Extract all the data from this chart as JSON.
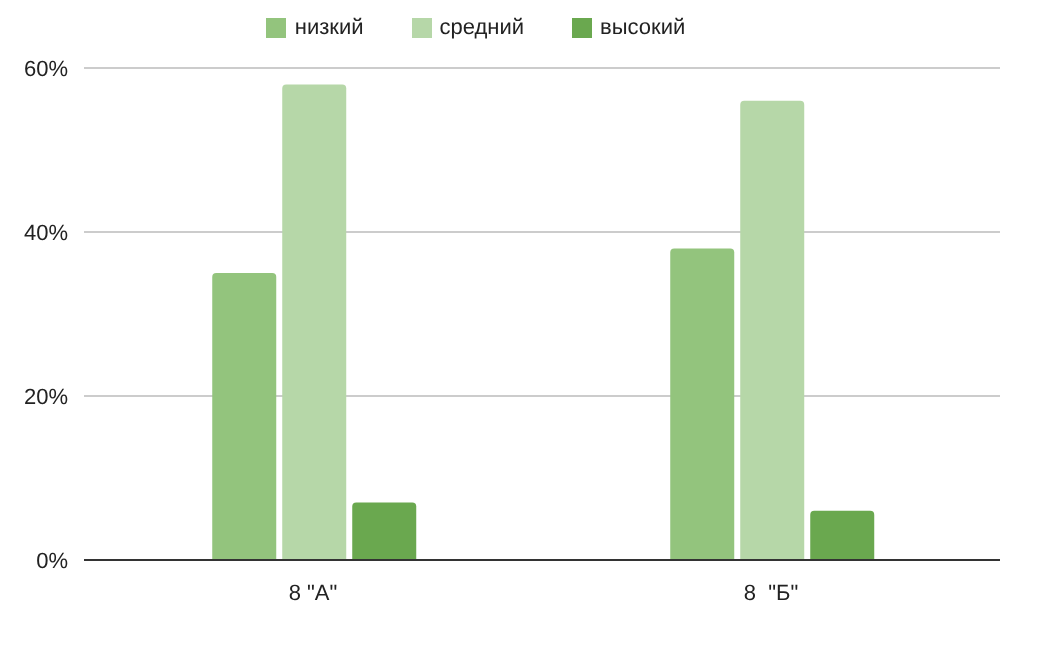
{
  "chart_data": {
    "type": "bar",
    "categories": [
      "8 \"А\"",
      "8  \"Б\""
    ],
    "series": [
      {
        "name": "низкий",
        "color": "#93c47d",
        "values": [
          35,
          38
        ]
      },
      {
        "name": "средний",
        "color": "#b6d7a8",
        "values": [
          58,
          56
        ]
      },
      {
        "name": "высокий",
        "color": "#6aa84f",
        "values": [
          7,
          6
        ]
      }
    ],
    "ylim": [
      0,
      60
    ],
    "yticks": [
      {
        "value": 0,
        "label": "0%"
      },
      {
        "value": 20,
        "label": "20%"
      },
      {
        "value": 40,
        "label": "40%"
      },
      {
        "value": 60,
        "label": "60%"
      }
    ],
    "grid": "y",
    "legend": "top"
  }
}
